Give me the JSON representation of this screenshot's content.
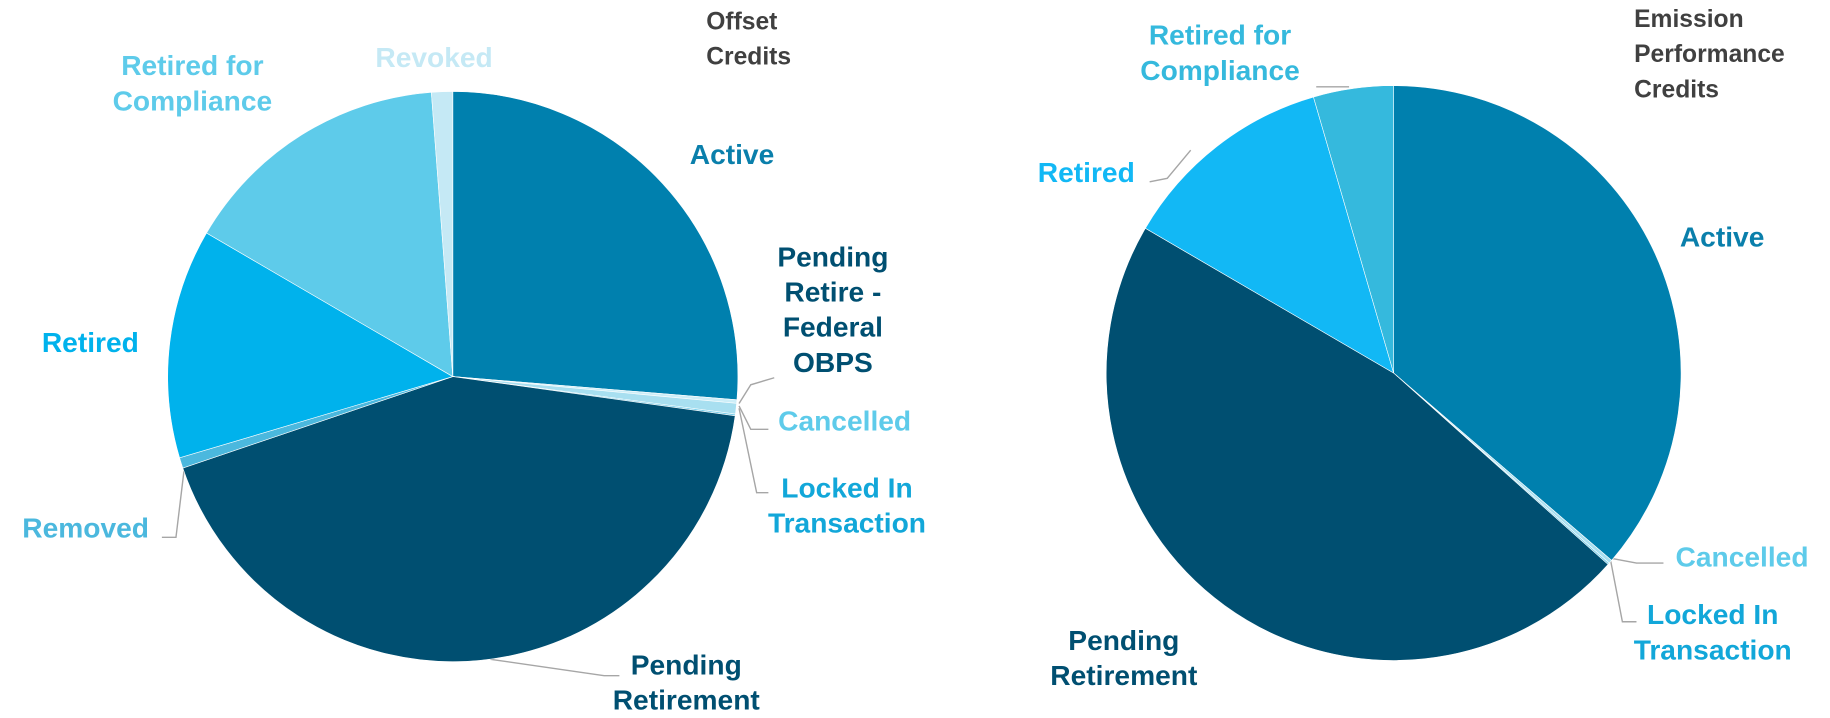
{
  "chart_data": [
    {
      "type": "pie",
      "title": "Offset Credits",
      "categories": [
        "Active",
        "Pending Retire - Federal OBPS",
        "Cancelled",
        "Locked In Transaction",
        "Pending Retirement",
        "Removed",
        "Retired",
        "Retired for Compliance",
        "Revoked"
      ],
      "values": [
        26.3,
        0.2,
        0.6,
        0.1,
        42.6,
        0.6,
        13,
        15.4,
        1.2
      ],
      "colors": [
        "#0080ae",
        "#cdeef8",
        "#a8dff0",
        "#7bd0ec",
        "#004f71",
        "#4bb8de",
        "#00b2ec",
        "#5ecbea",
        "#c5e9f5"
      ]
    },
    {
      "type": "pie",
      "title": "Emission Performance Credits",
      "categories": [
        "Active",
        "Cancelled",
        "Locked In Transaction",
        "Pending Retirement",
        "Retired",
        "Retired for Compliance"
      ],
      "values": [
        36.3,
        0.2,
        0.1,
        46.8,
        12.1,
        4.5
      ],
      "colors": [
        "#0080ae",
        "#a8dff0",
        "#7bd0ec",
        "#004f71",
        "#12b8f5",
        "#35b9dd"
      ]
    }
  ]
}
